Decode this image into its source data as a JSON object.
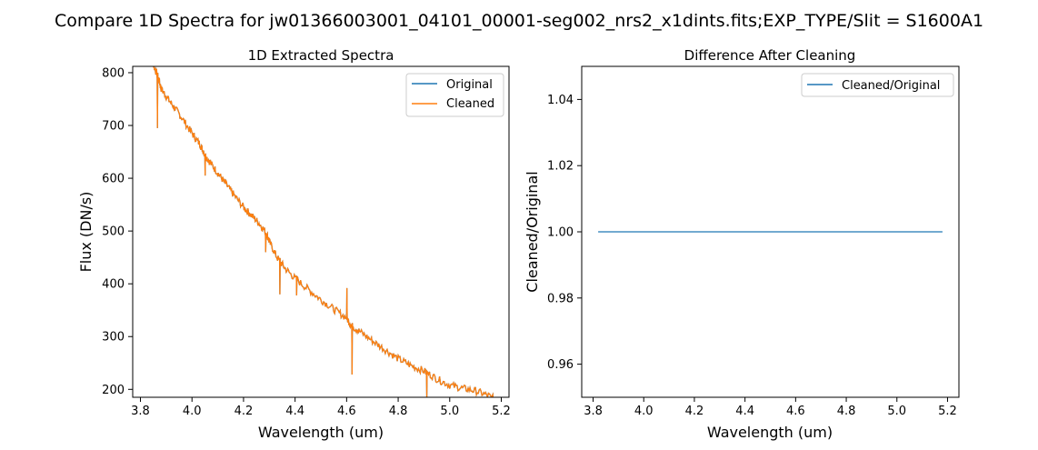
{
  "figure": {
    "suptitle": "Compare 1D Spectra for jw01366003001_04101_00001-seg002_nrs2_x1dints.fits;EXP_TYPE/Slit = S1600A1"
  },
  "colors": {
    "original": "#1f77b4",
    "cleaned": "#ff7f0e"
  },
  "chart_data": [
    {
      "type": "line",
      "title": "1D Extracted Spectra",
      "xlabel": "Wavelength (um)",
      "ylabel": "Flux (DN/s)",
      "xlim": [
        3.77,
        5.23
      ],
      "ylim": [
        185,
        812
      ],
      "xticks": [
        "3.8",
        "4.0",
        "4.2",
        "4.4",
        "4.6",
        "4.8",
        "5.0",
        "5.2"
      ],
      "yticks": [
        "200",
        "300",
        "400",
        "500",
        "600",
        "700",
        "800"
      ],
      "legend": "top-right",
      "grid": false,
      "series": [
        {
          "name": "Original",
          "color": "#1f77b4",
          "x": [
            3.82,
            3.85,
            3.87,
            3.88,
            3.9,
            3.93,
            3.96,
            4.0,
            4.03,
            4.05,
            4.07,
            4.1,
            4.13,
            4.16,
            4.2,
            4.23,
            4.26,
            4.29,
            4.3,
            4.33,
            4.36,
            4.4,
            4.45,
            4.5,
            4.55,
            4.6,
            4.62,
            4.65,
            4.7,
            4.75,
            4.8,
            4.85,
            4.9,
            4.95,
            5.0,
            5.05,
            5.1,
            5.15,
            5.18
          ],
          "y": [
            900,
            815,
            790,
            770,
            755,
            735,
            715,
            685,
            665,
            645,
            630,
            610,
            590,
            570,
            545,
            530,
            515,
            495,
            480,
            450,
            430,
            410,
            390,
            370,
            352,
            335,
            320,
            310,
            292,
            275,
            258,
            245,
            235,
            220,
            208,
            202,
            197,
            188,
            180
          ]
        },
        {
          "name": "Cleaned",
          "color": "#ff7f0e",
          "x": [
            3.82,
            3.85,
            3.87,
            3.88,
            3.9,
            3.93,
            3.96,
            4.0,
            4.03,
            4.05,
            4.07,
            4.1,
            4.13,
            4.16,
            4.2,
            4.23,
            4.26,
            4.29,
            4.3,
            4.33,
            4.36,
            4.4,
            4.45,
            4.5,
            4.55,
            4.6,
            4.62,
            4.65,
            4.7,
            4.75,
            4.8,
            4.85,
            4.9,
            4.95,
            5.0,
            5.05,
            5.1,
            5.15,
            5.18
          ],
          "y": [
            900,
            815,
            790,
            770,
            755,
            735,
            715,
            685,
            665,
            645,
            630,
            610,
            590,
            570,
            545,
            530,
            515,
            495,
            480,
            450,
            430,
            410,
            390,
            370,
            352,
            335,
            320,
            310,
            292,
            275,
            258,
            245,
            235,
            220,
            208,
            202,
            197,
            188,
            180
          ]
        }
      ],
      "spikes": [
        {
          "x": 3.865,
          "y": 695
        },
        {
          "x": 4.05,
          "y": 605
        },
        {
          "x": 4.285,
          "y": 460
        },
        {
          "x": 4.34,
          "y": 380
        },
        {
          "x": 4.405,
          "y": 378
        },
        {
          "x": 4.6,
          "y": 392
        },
        {
          "x": 4.62,
          "y": 228
        },
        {
          "x": 4.91,
          "y": 185
        }
      ]
    },
    {
      "type": "line",
      "title": "Difference After Cleaning",
      "xlabel": "Wavelength (um)",
      "ylabel": "Cleaned/Original",
      "xlim": [
        3.755,
        5.245
      ],
      "ylim": [
        0.95,
        1.05
      ],
      "xticks": [
        "3.8",
        "4.0",
        "4.2",
        "4.4",
        "4.6",
        "4.8",
        "5.0",
        "5.2"
      ],
      "yticks": [
        "0.96",
        "0.98",
        "1.00",
        "1.02",
        "1.04"
      ],
      "legend": "top-right",
      "grid": false,
      "series": [
        {
          "name": "Cleaned/Original",
          "color": "#1f77b4",
          "x": [
            3.82,
            5.18
          ],
          "y": [
            1.0,
            1.0
          ]
        }
      ]
    }
  ]
}
